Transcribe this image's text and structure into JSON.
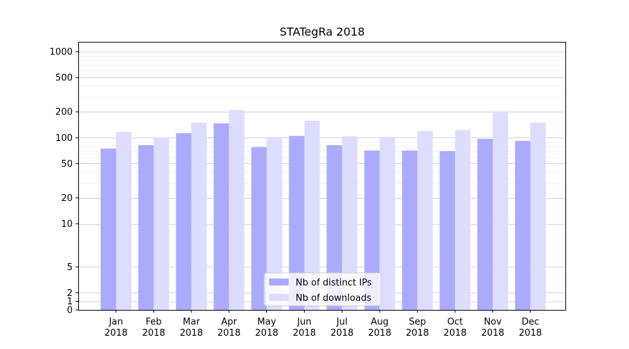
{
  "chart_data": {
    "type": "bar",
    "title": "STATegRa 2018",
    "xlabel": "",
    "ylabel": "",
    "y_scale": "symlog",
    "ylim": [
      0,
      1300
    ],
    "y_ticks": [
      0,
      1,
      2,
      5,
      10,
      20,
      50,
      100,
      200,
      500,
      1000
    ],
    "y_tick_labels": [
      "0",
      "1",
      "2",
      "5",
      "10",
      "20",
      "50",
      "100",
      "200",
      "500",
      "1000"
    ],
    "categories": [
      "Jan\n2018",
      "Feb\n2018",
      "Mar\n2018",
      "Apr\n2018",
      "May\n2018",
      "Jun\n2018",
      "Jul\n2018",
      "Aug\n2018",
      "Sep\n2018",
      "Oct\n2018",
      "Nov\n2018",
      "Dec\n2018"
    ],
    "series": [
      {
        "name": "Nb of distinct IPs",
        "color": "#aaaaff",
        "values": [
          75,
          82,
          113,
          147,
          78,
          105,
          82,
          71,
          71,
          70,
          97,
          92
        ]
      },
      {
        "name": "Nb of downloads",
        "color": "#ddddff",
        "values": [
          117,
          100,
          150,
          210,
          102,
          158,
          104,
          102,
          120,
          123,
          203,
          150
        ]
      }
    ],
    "grid": "y",
    "legend_position": "bottom-center"
  }
}
